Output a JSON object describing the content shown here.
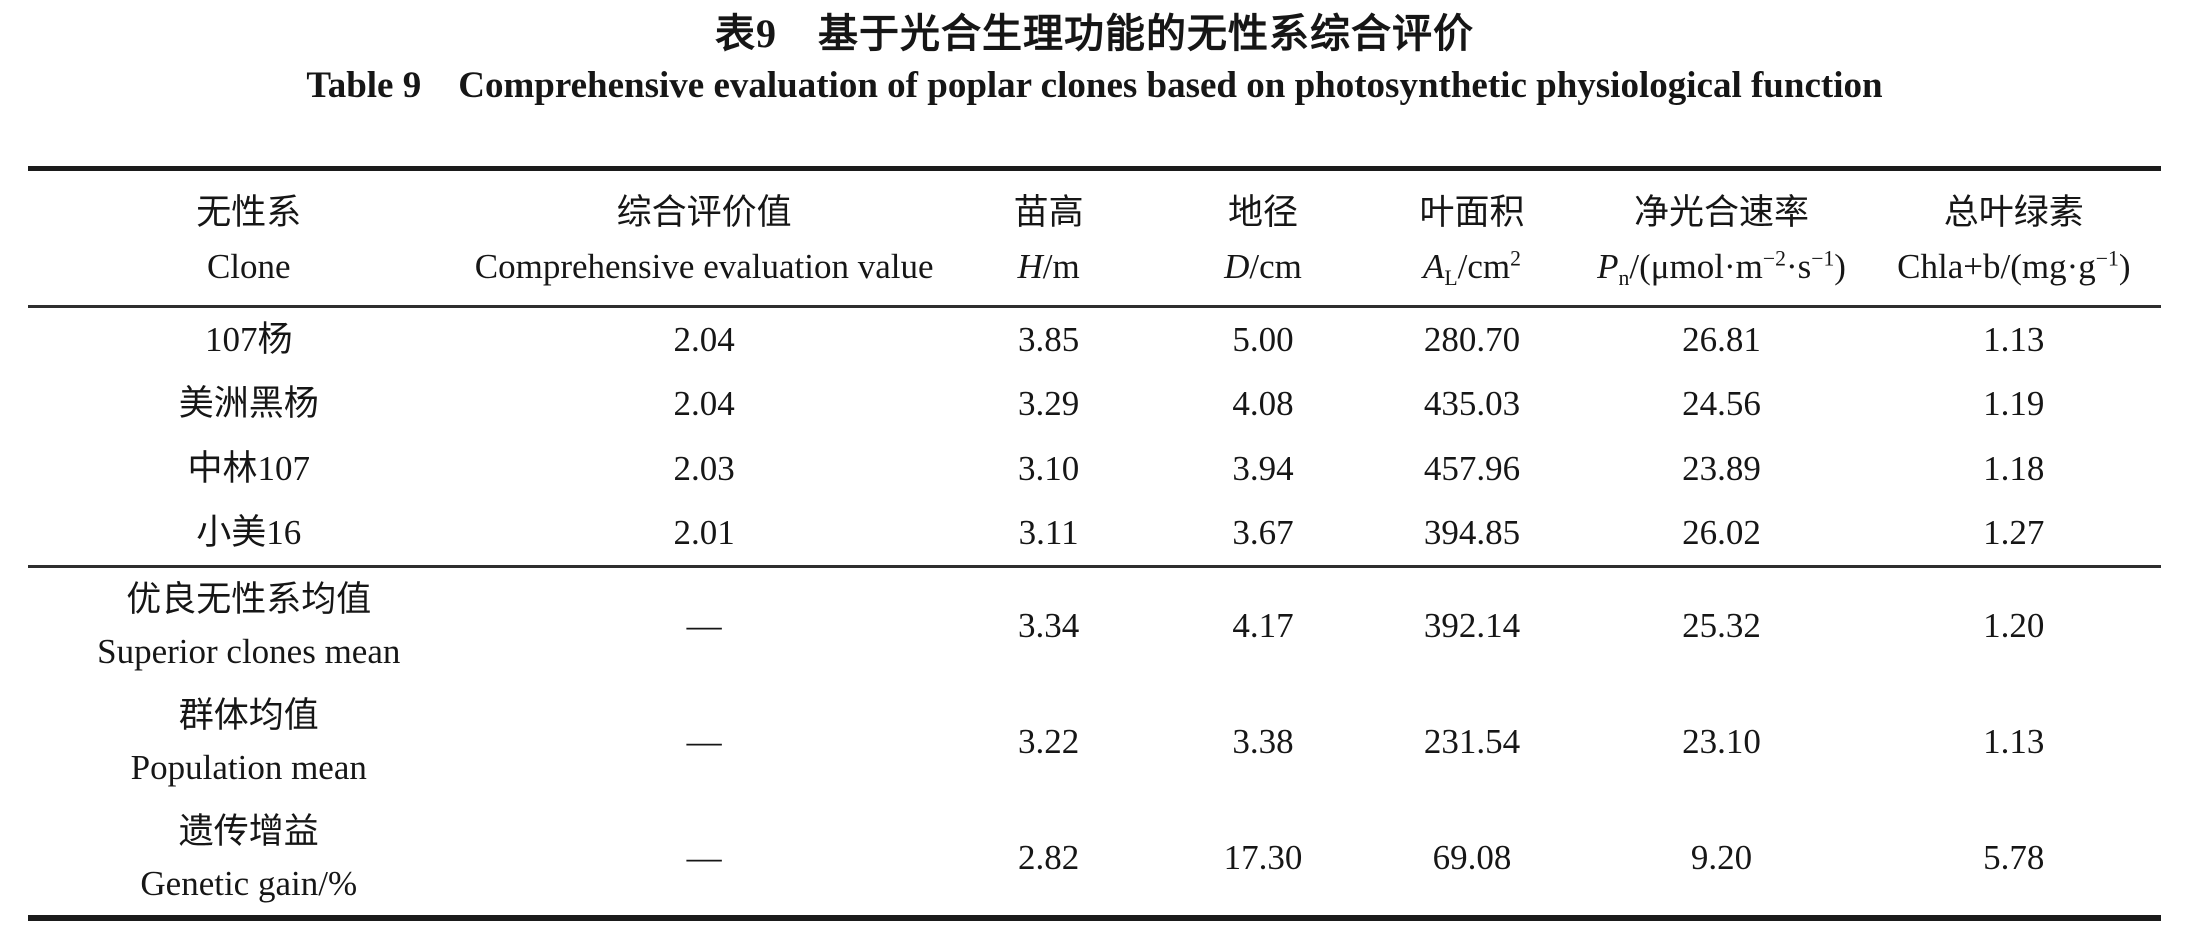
{
  "page": {
    "title_zh": "表9　基于光合生理功能的无性系综合评价",
    "title_en": "Table 9　Comprehensive evaluation of poplar clones based on photosynthetic physiological function"
  },
  "table": {
    "header": [
      {
        "zh": "无性系",
        "en": [
          {
            "t": "Clone"
          }
        ]
      },
      {
        "zh": "综合评价值",
        "en": [
          {
            "t": "Comprehensive evaluation value"
          }
        ]
      },
      {
        "zh": "苗高",
        "en": [
          {
            "t": "H",
            "s": "i"
          },
          {
            "t": "/m"
          }
        ]
      },
      {
        "zh": "地径",
        "en": [
          {
            "t": "D",
            "s": "i"
          },
          {
            "t": "/cm"
          }
        ]
      },
      {
        "zh": "叶面积",
        "en": [
          {
            "t": "A",
            "s": "i"
          },
          {
            "t": "L",
            "s": "sub"
          },
          {
            "t": "/cm"
          },
          {
            "t": "2",
            "s": "sup"
          }
        ]
      },
      {
        "zh": "净光合速率",
        "en": [
          {
            "t": "P",
            "s": "i"
          },
          {
            "t": "n",
            "s": "sub"
          },
          {
            "t": "/(μmol·m"
          },
          {
            "t": "−2",
            "s": "sup"
          },
          {
            "t": "·s"
          },
          {
            "t": "−1",
            "s": "sup"
          },
          {
            "t": ")"
          }
        ]
      },
      {
        "zh": "总叶绿素",
        "en": [
          {
            "t": "Chla+b/(mg·g"
          },
          {
            "t": "−1",
            "s": "sup"
          },
          {
            "t": ")"
          }
        ]
      }
    ],
    "rows": [
      {
        "zh": "107杨",
        "en": "",
        "values": [
          "2.04",
          "3.85",
          "5.00",
          "280.70",
          "26.81",
          "1.13"
        ],
        "section_start": false
      },
      {
        "zh": "美洲黑杨",
        "en": "",
        "values": [
          "2.04",
          "3.29",
          "4.08",
          "435.03",
          "24.56",
          "1.19"
        ],
        "section_start": false
      },
      {
        "zh": "中林107",
        "en": "",
        "values": [
          "2.03",
          "3.10",
          "3.94",
          "457.96",
          "23.89",
          "1.18"
        ],
        "section_start": false
      },
      {
        "zh": "小美16",
        "en": "",
        "values": [
          "2.01",
          "3.11",
          "3.67",
          "394.85",
          "26.02",
          "1.27"
        ],
        "section_start": false
      },
      {
        "zh": "优良无性系均值",
        "en": "Superior clones mean",
        "values": [
          "—",
          "3.34",
          "4.17",
          "392.14",
          "25.32",
          "1.20"
        ],
        "section_start": true
      },
      {
        "zh": "群体均值",
        "en": "Population mean",
        "values": [
          "—",
          "3.22",
          "3.38",
          "231.54",
          "23.10",
          "1.13"
        ],
        "section_start": false
      },
      {
        "zh": "遗传增益",
        "en": "Genetic gain/%",
        "values": [
          "—",
          "2.82",
          "17.30",
          "69.08",
          "9.20",
          "5.78"
        ],
        "section_start": false
      }
    ]
  },
  "colors": {
    "background": "#ffffff",
    "text": "#161616",
    "rule_thick": "#1b1b1b",
    "rule_thin": "#2e2e2e"
  }
}
